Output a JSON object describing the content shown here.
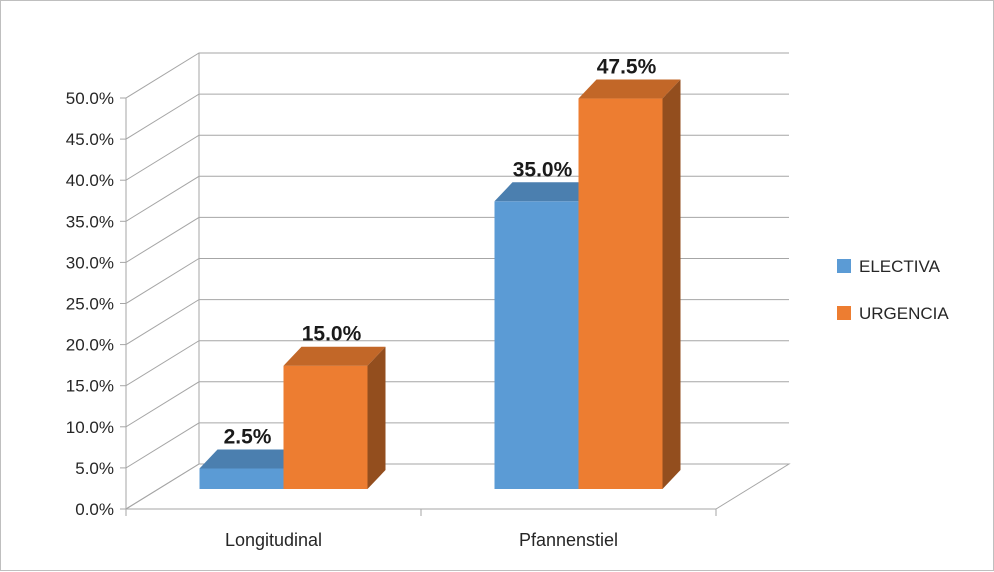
{
  "chart_data": {
    "type": "bar",
    "categories": [
      "Longitudinal",
      "Pfannenstiel"
    ],
    "series": [
      {
        "name": "ELECTIVA",
        "values": [
          2.5,
          35.0
        ],
        "labels": [
          "2.5%",
          "35.0%"
        ],
        "color": "#5b9bd5"
      },
      {
        "name": "URGENCIA",
        "values": [
          15.0,
          47.5
        ],
        "labels": [
          "15.0%",
          "47.5%"
        ],
        "color": "#ed7d31"
      }
    ],
    "ylim": [
      0,
      50
    ],
    "yticks": [
      "0.0%",
      "5.0%",
      "10.0%",
      "15.0%",
      "20.0%",
      "25.0%",
      "30.0%",
      "35.0%",
      "40.0%",
      "45.0%",
      "50.0%"
    ],
    "grid": true,
    "style": "3d",
    "legend_position": "right"
  }
}
